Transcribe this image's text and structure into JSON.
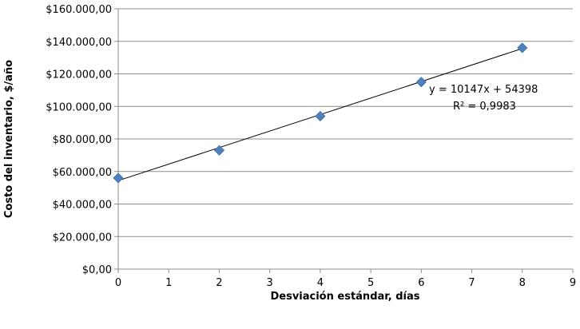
{
  "chart_data": {
    "type": "scatter",
    "title": "",
    "xlabel": "Desviación estándar, días",
    "ylabel": "Costo del inventario, $/año",
    "xlim": [
      0,
      9
    ],
    "ylim": [
      0,
      160000
    ],
    "x_ticks": [
      0,
      1,
      2,
      3,
      4,
      5,
      6,
      7,
      8,
      9
    ],
    "x_tick_labels": [
      "0",
      "1",
      "2",
      "3",
      "4",
      "5",
      "6",
      "7",
      "8",
      "9"
    ],
    "y_ticks": [
      0,
      20000,
      40000,
      60000,
      80000,
      100000,
      120000,
      140000,
      160000
    ],
    "y_tick_labels": [
      "$0,00",
      "$20.000,00",
      "$40.000,00",
      "$60.000,00",
      "$80.000,00",
      "$100.000,00",
      "$120.000,00",
      "$140.000,00",
      "$160.000,00"
    ],
    "grid": "horizontal",
    "legend": "none",
    "series": [
      {
        "x": [
          0,
          2,
          4,
          6,
          8
        ],
        "y": [
          56000,
          73000,
          94000,
          115000,
          136000
        ],
        "marker": "diamond",
        "color": "#4F81BD"
      }
    ],
    "trendline": {
      "type": "linear",
      "slope": 10147,
      "intercept": 54398,
      "x_range": [
        0,
        8
      ],
      "color": "#000000"
    },
    "annotations": {
      "equation": "y = 10147x + 54398",
      "r_squared": "R² = 0,9983"
    }
  }
}
